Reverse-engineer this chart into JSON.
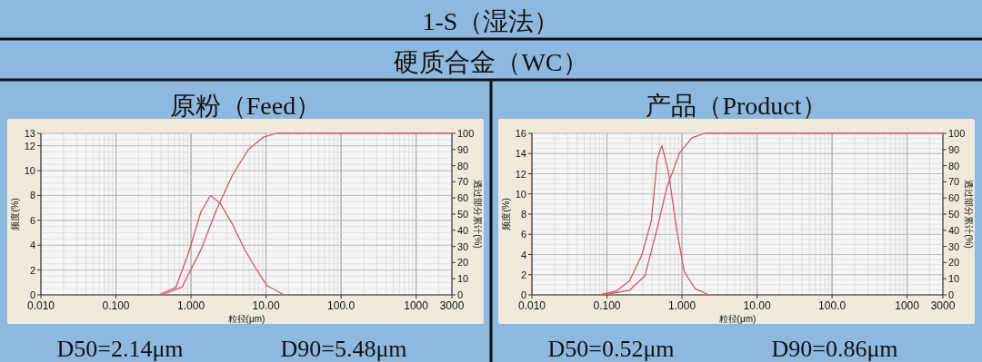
{
  "chart_data": [
    {
      "type": "line",
      "title": "原粉（Feed）",
      "xlabel": "粒径(μm)",
      "ylabel": "频度(%)",
      "y2label": "透过部分累计(%)",
      "log": "x",
      "grid": true,
      "xlim": [
        0.01,
        3000
      ],
      "xticks": [
        {
          "value": 0.01,
          "label": "0.010"
        },
        {
          "value": 0.1,
          "label": "0.100"
        },
        {
          "value": 1,
          "label": "1.000"
        },
        {
          "value": 10,
          "label": "10.00"
        },
        {
          "value": 100,
          "label": "100.0"
        },
        {
          "value": 1000,
          "label": "1000"
        },
        {
          "value": 3000,
          "label": "3000"
        }
      ],
      "ylim": [
        0,
        13
      ],
      "yticks": [
        0,
        2,
        4,
        6,
        8,
        10,
        12,
        13
      ],
      "y2lim": [
        0,
        100
      ],
      "y2ticks": [
        0,
        10,
        20,
        30,
        40,
        50,
        60,
        70,
        80,
        90,
        100
      ],
      "series": [
        {
          "color": "#d05a64",
          "x": [
            0.37,
            0.63,
            0.93,
            1.36,
            1.82,
            2.43,
            3.56,
            5.25,
            7.7,
            10.3,
            17.4
          ],
          "values": [
            0,
            0.6,
            3.4,
            6.7,
            8.0,
            7.4,
            5.7,
            3.6,
            1.9,
            0.75,
            0
          ]
        },
        {
          "color": "#d05a64",
          "axis": "y2",
          "x": [
            0.41,
            0.76,
            1.36,
            2.2,
            3.56,
            5.8,
            9.3,
            13.7,
            3000
          ],
          "values": [
            0,
            4.8,
            28,
            53,
            74,
            90,
            97.7,
            100,
            100
          ]
        }
      ],
      "annotations": [
        "1-S（湿法）",
        "硬质合金（WC）",
        "D50=2.14μm",
        "D90=5.48μm"
      ]
    },
    {
      "type": "line",
      "title": "产品（Product）",
      "xlabel": "粒径(μm)",
      "ylabel": "频度(%)",
      "y2label": "透过部分累计(%)",
      "log": "x",
      "grid": true,
      "xlim": [
        0.01,
        3000
      ],
      "xticks": [
        {
          "value": 0.01,
          "label": "0.010"
        },
        {
          "value": 0.1,
          "label": "0.100"
        },
        {
          "value": 1,
          "label": "1.000"
        },
        {
          "value": 10,
          "label": "10.00"
        },
        {
          "value": 100,
          "label": "100.0"
        },
        {
          "value": 1000,
          "label": "1000"
        },
        {
          "value": 3000,
          "label": "3000"
        }
      ],
      "ylim": [
        0,
        16
      ],
      "yticks": [
        0,
        2,
        4,
        6,
        8,
        10,
        12,
        14,
        16
      ],
      "y2lim": [
        0,
        100
      ],
      "y2ticks": [
        0,
        10,
        20,
        30,
        40,
        50,
        60,
        70,
        80,
        90,
        100
      ],
      "series": [
        {
          "color": "#d05a64",
          "x": [
            0.08,
            0.135,
            0.2,
            0.29,
            0.39,
            0.47,
            0.54,
            0.66,
            0.84,
            1.07,
            1.5,
            2.3
          ],
          "values": [
            0,
            0.4,
            1.4,
            3.9,
            7.3,
            13.5,
            14.8,
            12.2,
            6.7,
            2.3,
            0.6,
            0
          ]
        },
        {
          "color": "#d05a64",
          "axis": "y2",
          "x": [
            0.09,
            0.2,
            0.32,
            0.47,
            0.63,
            0.93,
            1.36,
            2.0,
            3000
          ],
          "values": [
            0,
            2.9,
            11.6,
            41.6,
            66.7,
            88,
            97.3,
            100,
            100
          ]
        }
      ],
      "annotations": [
        "D50=0.52μm",
        "D90=0.86μm"
      ]
    }
  ]
}
